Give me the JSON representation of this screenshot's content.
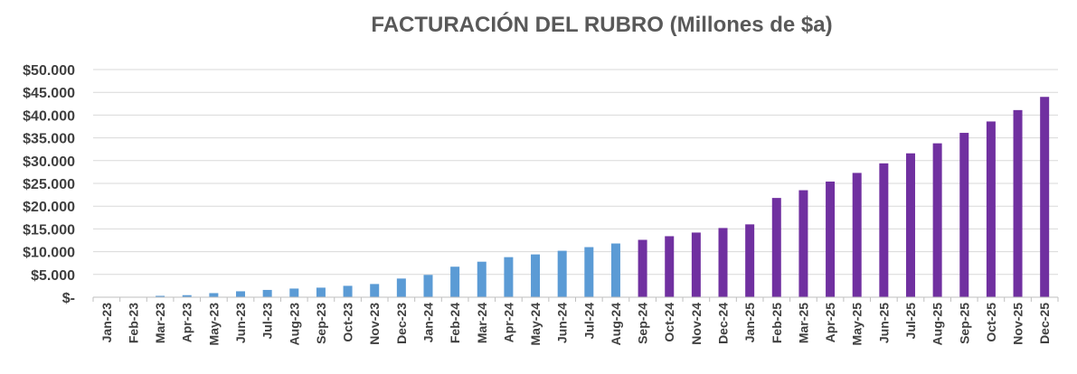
{
  "chart_data": {
    "type": "bar",
    "title": "FACTURACIÓN DEL RUBRO (Millones de $a)",
    "xlabel": "",
    "ylabel": "",
    "ylim": [
      0,
      50000
    ],
    "yticks": [
      0,
      5000,
      10000,
      15000,
      20000,
      25000,
      30000,
      35000,
      40000,
      45000,
      50000
    ],
    "ytick_labels": [
      "$-",
      "$5.000",
      "$10.000",
      "$15.000",
      "$20.000",
      "$25.000",
      "$30.000",
      "$35.000",
      "$40.000",
      "$45.000",
      "$50.000"
    ],
    "grid": true,
    "legend": "none",
    "categories": [
      "Jan-23",
      "Feb-23",
      "Mar-23",
      "Apr-23",
      "May-23",
      "Jun-23",
      "Jul-23",
      "Aug-23",
      "Sep-23",
      "Oct-23",
      "Nov-23",
      "Dec-23",
      "Jan-24",
      "Feb-24",
      "Mar-24",
      "Apr-24",
      "May-24",
      "Jun-24",
      "Jul-24",
      "Aug-24",
      "Sep-24",
      "Oct-24",
      "Nov-24",
      "Dec-24",
      "Jan-25",
      "Feb-25",
      "Mar-25",
      "Apr-25",
      "May-25",
      "Jun-25",
      "Jul-25",
      "Aug-25",
      "Sep-25",
      "Oct-25",
      "Nov-25",
      "Dec-25"
    ],
    "values": [
      0,
      50,
      300,
      450,
      900,
      1300,
      1600,
      1900,
      2100,
      2500,
      2900,
      4100,
      4900,
      6700,
      7800,
      8800,
      9400,
      10200,
      11000,
      11800,
      12600,
      13400,
      14200,
      15200,
      16000,
      21800,
      23500,
      25400,
      27300,
      29400,
      31600,
      33800,
      36100,
      38600,
      41100,
      44000
    ],
    "colors": {
      "actual": "#5b9bd5",
      "projected": "#7030a0",
      "projected_from_index": 20
    }
  }
}
